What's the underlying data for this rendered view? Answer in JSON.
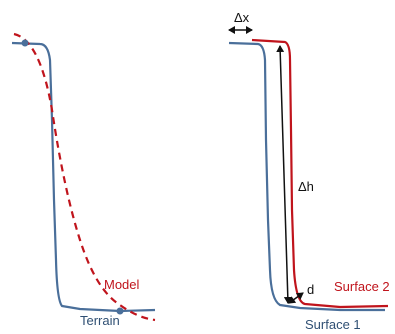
{
  "left_panel": {
    "model_label": "Model",
    "terrain_label": "Terrain"
  },
  "right_panel": {
    "delta_x_label": "Δx",
    "delta_h_label": "Δh",
    "d_label": "d",
    "surface2_label": "Surface 2",
    "surface1_label": "Surface 1"
  },
  "colors": {
    "terrain": "#4a6f9a",
    "model": "#c0141c",
    "surface1": "#4a6f9a",
    "surface2": "#c0141c",
    "arrow": "#111111",
    "text_dark": "#2f4f73",
    "text_red": "#c0141c"
  }
}
